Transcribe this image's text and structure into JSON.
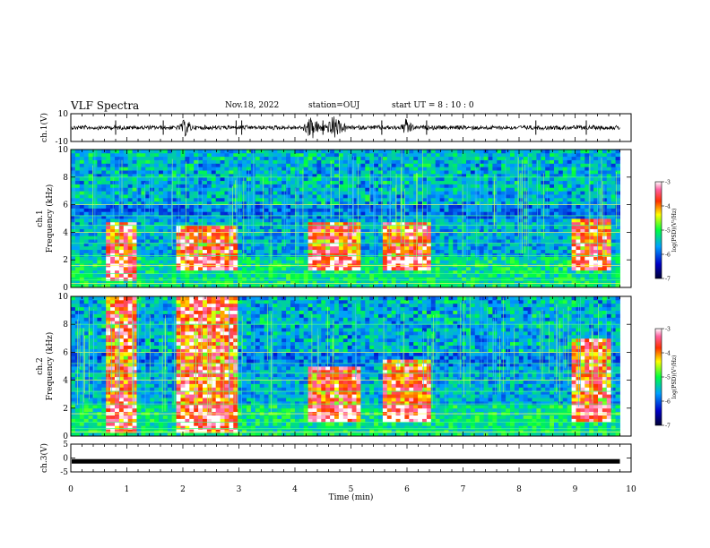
{
  "header": {
    "title": "VLF Spectra",
    "date": "Nov.18, 2022",
    "station": "station=OUJ",
    "start": "start  UT =   8  : 10 : 0"
  },
  "colors": {
    "spec_low": "#0a0a6e",
    "spec_high": "#ffffff",
    "trace": "#000000"
  },
  "chart_data": [
    {
      "type": "line",
      "name": "waveform-ch1",
      "ylabel": "ch.1(V)",
      "xlim": [
        0,
        10
      ],
      "ylim": [
        -10,
        10
      ],
      "yticks": [
        "10",
        "-10"
      ],
      "trace_baseline": 0,
      "bursts_min": [
        2.05,
        4.3,
        4.7,
        6.0
      ]
    },
    {
      "type": "heatmap",
      "name": "spectrogram-ch1",
      "ylabel": "ch.1\nFrequency (kHz)",
      "xlim": [
        0,
        10
      ],
      "ylim": [
        0,
        10
      ],
      "yticks": [
        "0",
        "2",
        "4",
        "6",
        "8",
        "10"
      ],
      "active_blocks": [
        {
          "x0": 0.6,
          "x1": 1.15,
          "f0": 0.5,
          "f1": 4.8
        },
        {
          "x0": 1.85,
          "x1": 3.0,
          "f0": 1.2,
          "f1": 4.6
        },
        {
          "x0": 4.2,
          "x1": 5.15,
          "f0": 1.2,
          "f1": 4.7
        },
        {
          "x0": 5.55,
          "x1": 6.45,
          "f0": 1.3,
          "f1": 4.7
        },
        {
          "x0": 8.9,
          "x1": 9.65,
          "f0": 1.2,
          "f1": 4.9
        }
      ],
      "colorbar": {
        "label": "log(PSD)(V²/Hz)",
        "ticks": [
          "-3",
          "-4",
          "-5",
          "-6",
          "-7"
        ],
        "range": [
          -7,
          -3
        ]
      }
    },
    {
      "type": "heatmap",
      "name": "spectrogram-ch2",
      "ylabel": "ch.2\nFrequency (kHz)",
      "xlim": [
        0,
        10
      ],
      "ylim": [
        0,
        10
      ],
      "yticks": [
        "0",
        "2",
        "4",
        "6",
        "8",
        "10"
      ],
      "active_blocks": [
        {
          "x0": 0.6,
          "x1": 1.15,
          "f0": 0.3,
          "f1": 10.0
        },
        {
          "x0": 1.85,
          "x1": 3.0,
          "f0": 0.3,
          "f1": 10.0
        },
        {
          "x0": 4.2,
          "x1": 5.15,
          "f0": 1.0,
          "f1": 5.0
        },
        {
          "x0": 5.55,
          "x1": 6.45,
          "f0": 1.0,
          "f1": 5.6
        },
        {
          "x0": 8.9,
          "x1": 9.65,
          "f0": 1.0,
          "f1": 7.0
        }
      ],
      "colorbar": {
        "label": "log(PSD)(V²/Hz)",
        "ticks": [
          "-3",
          "-4",
          "-5",
          "-6",
          "-7"
        ],
        "range": [
          -7,
          -3
        ]
      }
    },
    {
      "type": "line",
      "name": "waveform-ch3",
      "ylabel": "ch.3(V)",
      "xlim": [
        0,
        10
      ],
      "ylim": [
        -5,
        5
      ],
      "yticks": [
        "5",
        "0",
        "-5"
      ],
      "constant_level": -1.2
    }
  ],
  "xaxis": {
    "label": "Time (min)",
    "ticks": [
      "0",
      "1",
      "2",
      "3",
      "4",
      "5",
      "6",
      "7",
      "8",
      "9",
      "10"
    ]
  }
}
